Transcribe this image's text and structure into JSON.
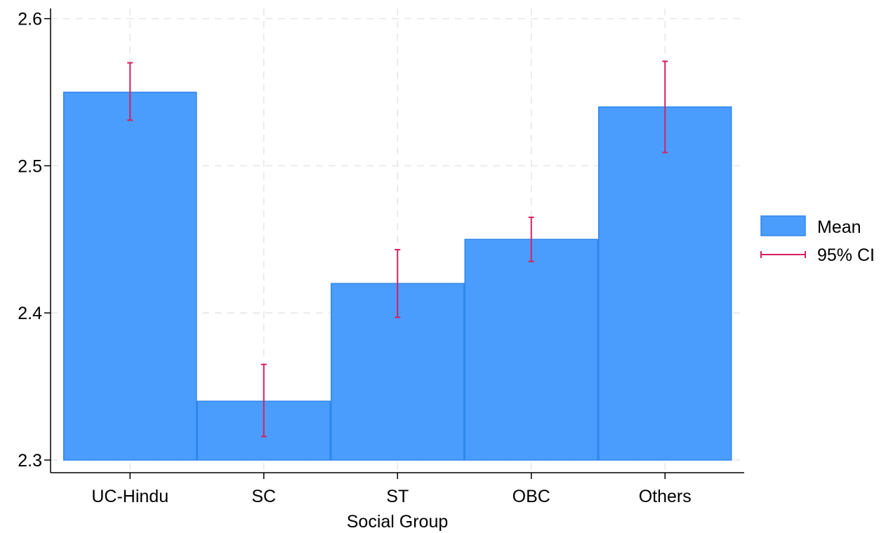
{
  "chart_data": {
    "type": "bar",
    "title": "",
    "xlabel": "Social Group",
    "ylabel": "",
    "categories": [
      "UC-Hindu",
      "SC",
      "ST",
      "OBC",
      "Others"
    ],
    "series": [
      {
        "name": "Mean",
        "values": [
          2.55,
          2.34,
          2.42,
          2.45,
          2.54
        ],
        "color": "#4a9dfc"
      }
    ],
    "ci": {
      "name": "95% CI",
      "lower": [
        2.531,
        2.316,
        2.397,
        2.435,
        2.509
      ],
      "upper": [
        2.57,
        2.365,
        2.443,
        2.465,
        2.571
      ],
      "color": "#d62060"
    },
    "ylim": [
      2.3,
      2.6
    ],
    "yticks": [
      "2.3",
      "2.4",
      "2.5",
      "2.6"
    ],
    "grid": true,
    "legend_position": "right"
  }
}
